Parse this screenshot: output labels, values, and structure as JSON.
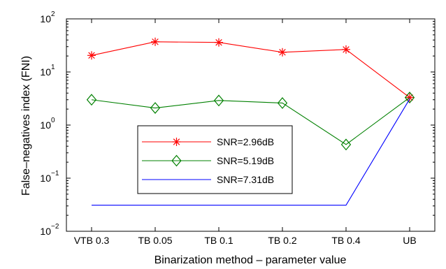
{
  "chart_data": {
    "type": "line",
    "xlabel": "Binarization method – parameter value",
    "ylabel": "False–negatives index (FNI)",
    "categories": [
      "VTB 0.3",
      "TB 0.05",
      "TB 0.1",
      "TB 0.2",
      "TB 0.4",
      "UB"
    ],
    "y_scale": "log",
    "ylim": [
      0.01,
      100
    ],
    "y_ticks": [
      {
        "value": 0.01,
        "base": "10",
        "exp": "−2"
      },
      {
        "value": 0.1,
        "base": "10",
        "exp": "−1"
      },
      {
        "value": 1,
        "base": "10",
        "exp": "0"
      },
      {
        "value": 10,
        "base": "10",
        "exp": "1"
      },
      {
        "value": 100,
        "base": "10",
        "exp": "2"
      }
    ],
    "grid": false,
    "legend_position": "center-left",
    "series": [
      {
        "name": "SNR=2.96dB",
        "color": "#ff0000",
        "marker": "asterisk",
        "values": [
          20.5,
          37,
          36,
          23.5,
          26.5,
          3.3
        ]
      },
      {
        "name": "SNR=5.19dB",
        "color": "#008000",
        "marker": "diamond",
        "values": [
          3.0,
          2.1,
          2.9,
          2.6,
          0.43,
          3.3
        ]
      },
      {
        "name": "SNR=7.31dB",
        "color": "#0000ff",
        "marker": "none",
        "values": [
          0.031,
          0.031,
          0.031,
          0.031,
          0.031,
          3.1
        ]
      }
    ]
  }
}
